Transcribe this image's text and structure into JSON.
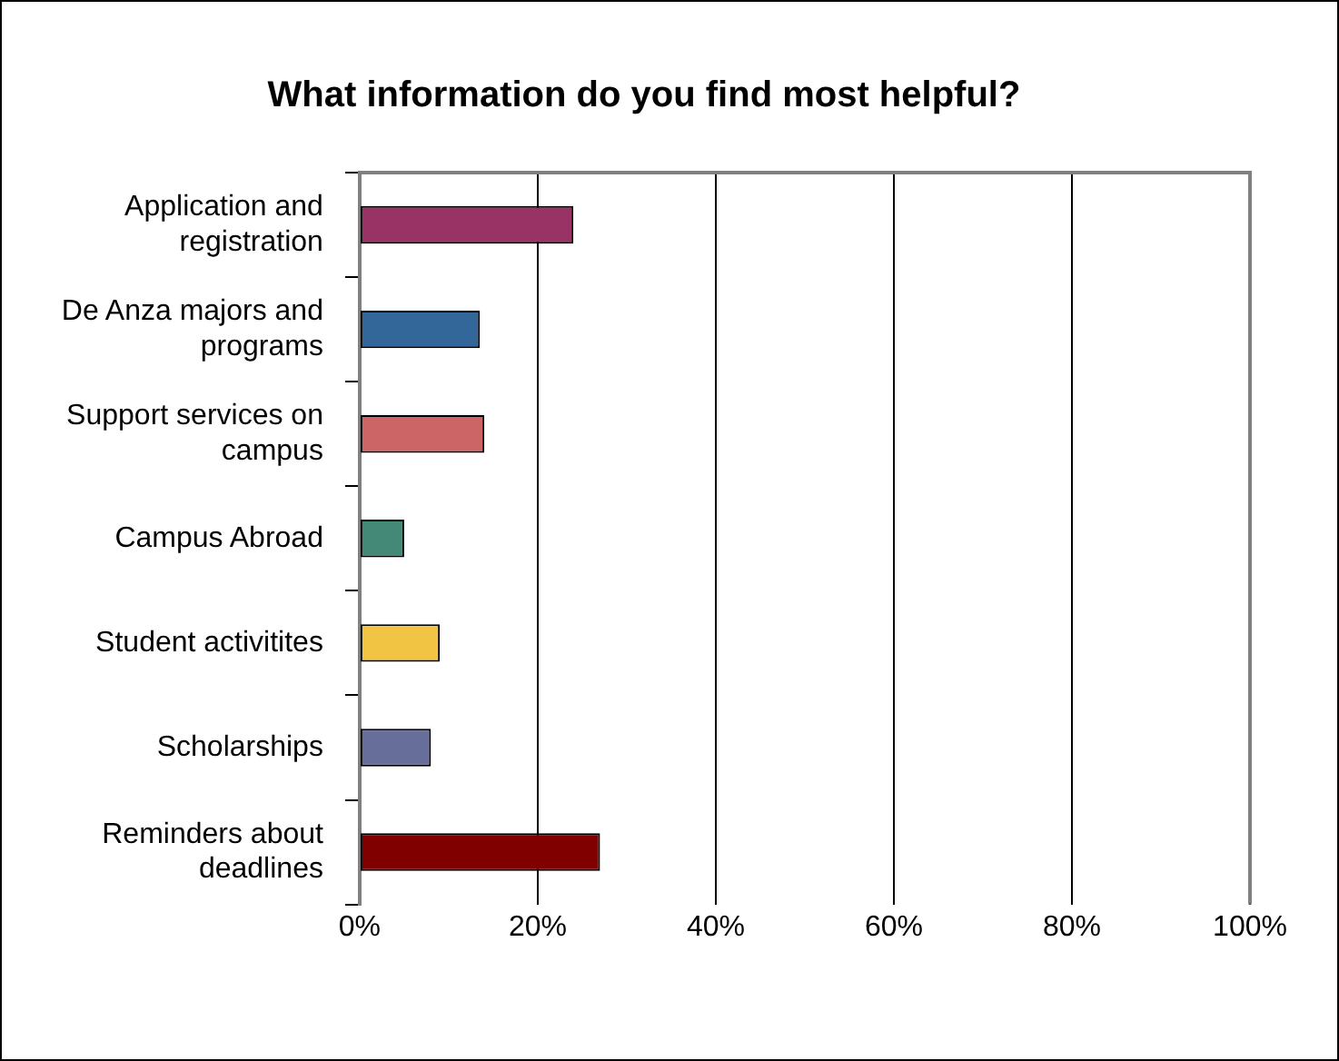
{
  "chart_data": {
    "type": "bar",
    "orientation": "horizontal",
    "title": "What information do you find most helpful?",
    "categories": [
      "Application and registration",
      "De Anza majors and programs",
      "Support services on campus",
      "Campus Abroad",
      "Student activitites",
      "Scholarships",
      "Reminders about deadlines"
    ],
    "values": [
      24,
      13.5,
      14,
      5,
      9,
      8,
      27
    ],
    "colors": [
      "#993366",
      "#336699",
      "#cc6666",
      "#448877",
      "#f2c444",
      "#666e99",
      "#800000"
    ],
    "xlim": [
      0,
      100
    ],
    "xticks": [
      {
        "value": 0,
        "label": "0%"
      },
      {
        "value": 20,
        "label": "20%"
      },
      {
        "value": 40,
        "label": "40%"
      },
      {
        "value": 60,
        "label": "60%"
      },
      {
        "value": 80,
        "label": "80%"
      },
      {
        "value": 100,
        "label": "100%"
      }
    ],
    "grid": "x",
    "legend": false
  }
}
